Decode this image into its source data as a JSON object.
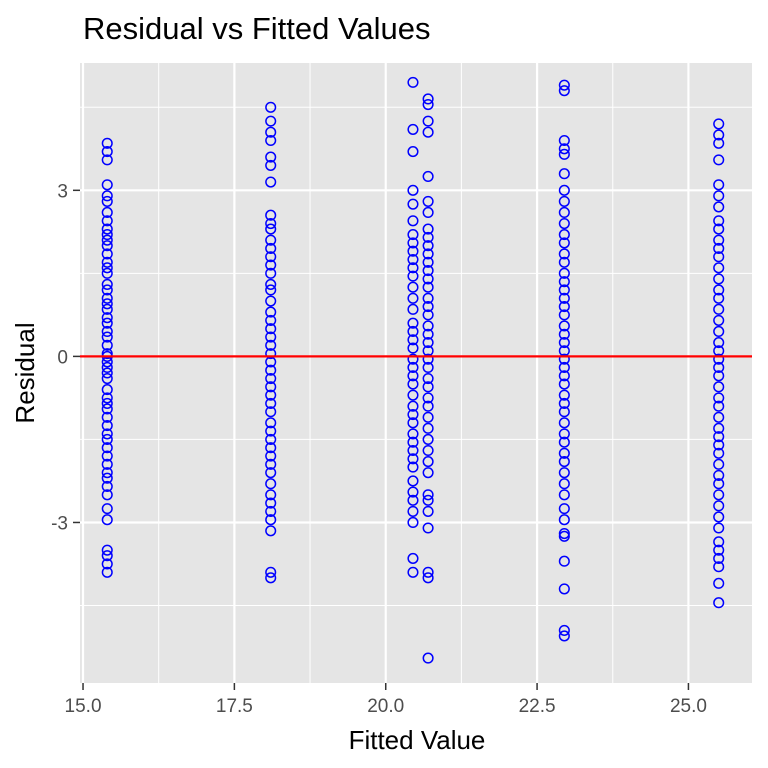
{
  "chart_data": {
    "type": "scatter",
    "title": "Residual vs Fitted Values",
    "xlabel": "Fitted Value",
    "ylabel": "Residual",
    "xlim": [
      14.95,
      26.05
    ],
    "ylim": [
      -5.9,
      5.3
    ],
    "x_ticks": [
      15.0,
      17.5,
      20.0,
      22.5,
      25.0
    ],
    "x_tick_labels": [
      "15.0",
      "17.5",
      "20.0",
      "22.5",
      "25.0"
    ],
    "y_ticks": [
      -3,
      0,
      3
    ],
    "y_tick_labels": [
      "-3",
      "0",
      "3"
    ],
    "grid": true,
    "background": "#e5e5e5",
    "grid_color": "#ffffff",
    "point_color": "#0000ff",
    "point_style": "open-circle",
    "reference_line": {
      "y": 0,
      "color": "#ff0000"
    },
    "series": [
      {
        "x": 15.4,
        "values": [
          3.85,
          3.7,
          3.55,
          3.1,
          2.9,
          2.8,
          2.6,
          2.45,
          2.3,
          2.2,
          2.1,
          2.0,
          1.85,
          1.7,
          1.6,
          1.5,
          1.3,
          1.2,
          1.05,
          0.95,
          0.85,
          0.7,
          0.6,
          0.45,
          0.35,
          0.2,
          0.05,
          0.0,
          -0.1,
          -0.2,
          -0.3,
          -0.4,
          -0.6,
          -0.75,
          -0.85,
          -0.95,
          -1.1,
          -1.25,
          -1.4,
          -1.5,
          -1.65,
          -1.8,
          -1.95,
          -2.1,
          -2.2,
          -2.35,
          -2.5,
          -2.75,
          -2.95,
          -3.5,
          -3.6,
          -3.75,
          -3.9
        ]
      },
      {
        "x": 18.1,
        "values": [
          4.5,
          4.25,
          4.05,
          3.9,
          3.6,
          3.45,
          3.15,
          2.55,
          2.4,
          2.3,
          2.1,
          1.95,
          1.8,
          1.65,
          1.5,
          1.3,
          1.2,
          1.0,
          0.8,
          0.65,
          0.5,
          0.35,
          0.2,
          0.05,
          -0.1,
          -0.25,
          -0.4,
          -0.55,
          -0.7,
          -0.85,
          -1.0,
          -1.2,
          -1.35,
          -1.5,
          -1.65,
          -1.8,
          -1.95,
          -2.1,
          -2.3,
          -2.5,
          -2.65,
          -2.8,
          -2.95,
          -3.15,
          -3.9,
          -4.0
        ]
      },
      {
        "x": 20.45,
        "values": [
          4.95,
          4.1,
          3.7,
          3.0,
          2.75,
          2.45,
          2.2,
          2.05,
          1.9,
          1.75,
          1.6,
          1.45,
          1.25,
          1.05,
          0.85,
          0.6,
          0.45,
          0.3,
          0.15,
          -0.05,
          -0.2,
          -0.35,
          -0.5,
          -0.7,
          -0.9,
          -1.05,
          -1.2,
          -1.4,
          -1.55,
          -1.7,
          -1.85,
          -2.0,
          -2.25,
          -2.45,
          -2.6,
          -2.8,
          -3.0,
          -3.65,
          -3.9
        ]
      },
      {
        "x": 20.7,
        "values": [
          4.65,
          4.55,
          4.25,
          4.05,
          3.25,
          2.8,
          2.6,
          2.3,
          2.15,
          2.0,
          1.85,
          1.7,
          1.55,
          1.4,
          1.25,
          1.05,
          0.9,
          0.75,
          0.55,
          0.4,
          0.25,
          0.1,
          -0.05,
          -0.2,
          -0.4,
          -0.55,
          -0.75,
          -0.9,
          -1.1,
          -1.3,
          -1.5,
          -1.7,
          -1.9,
          -2.1,
          -2.5,
          -2.6,
          -2.8,
          -3.1,
          -3.9,
          -4.0,
          -5.45
        ]
      },
      {
        "x": 22.95,
        "values": [
          4.9,
          4.8,
          3.9,
          3.75,
          3.65,
          3.3,
          3.0,
          2.8,
          2.6,
          2.4,
          2.2,
          2.05,
          1.85,
          1.7,
          1.5,
          1.35,
          1.2,
          1.05,
          0.9,
          0.75,
          0.55,
          0.4,
          0.25,
          0.1,
          -0.05,
          -0.2,
          -0.35,
          -0.5,
          -0.7,
          -0.85,
          -1.0,
          -1.2,
          -1.4,
          -1.55,
          -1.75,
          -1.9,
          -2.1,
          -2.3,
          -2.5,
          -2.75,
          -2.95,
          -3.2,
          -3.25,
          -3.7,
          -4.2,
          -4.95,
          -5.05
        ]
      },
      {
        "x": 25.5,
        "values": [
          4.2,
          4.0,
          3.85,
          3.55,
          3.1,
          2.9,
          2.7,
          2.45,
          2.3,
          2.1,
          1.95,
          1.8,
          1.6,
          1.4,
          1.2,
          1.05,
          0.85,
          0.65,
          0.45,
          0.25,
          0.1,
          -0.05,
          -0.2,
          -0.35,
          -0.55,
          -0.75,
          -0.9,
          -1.1,
          -1.3,
          -1.45,
          -1.6,
          -1.75,
          -1.95,
          -2.15,
          -2.3,
          -2.5,
          -2.7,
          -2.9,
          -3.1,
          -3.35,
          -3.5,
          -3.65,
          -3.8,
          -4.1,
          -4.45
        ]
      }
    ]
  }
}
